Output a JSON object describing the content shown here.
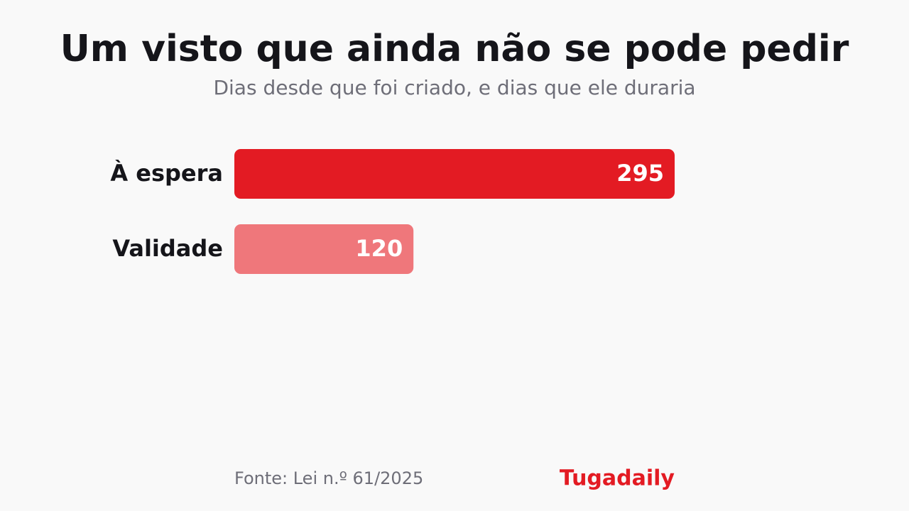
{
  "chart_data": {
    "type": "hbar",
    "title": "Um visto que ainda não se pode pedir",
    "subtitle": "Dias desde que foi criado, e dias que ele duraria",
    "categories": [
      "À espera",
      "Validade"
    ],
    "values": [
      295,
      120
    ],
    "colors": [
      "#e31b23",
      "#ef777b"
    ],
    "source": "Fonte: Lei n.º 61/2025",
    "brand": "Tugadaily"
  }
}
